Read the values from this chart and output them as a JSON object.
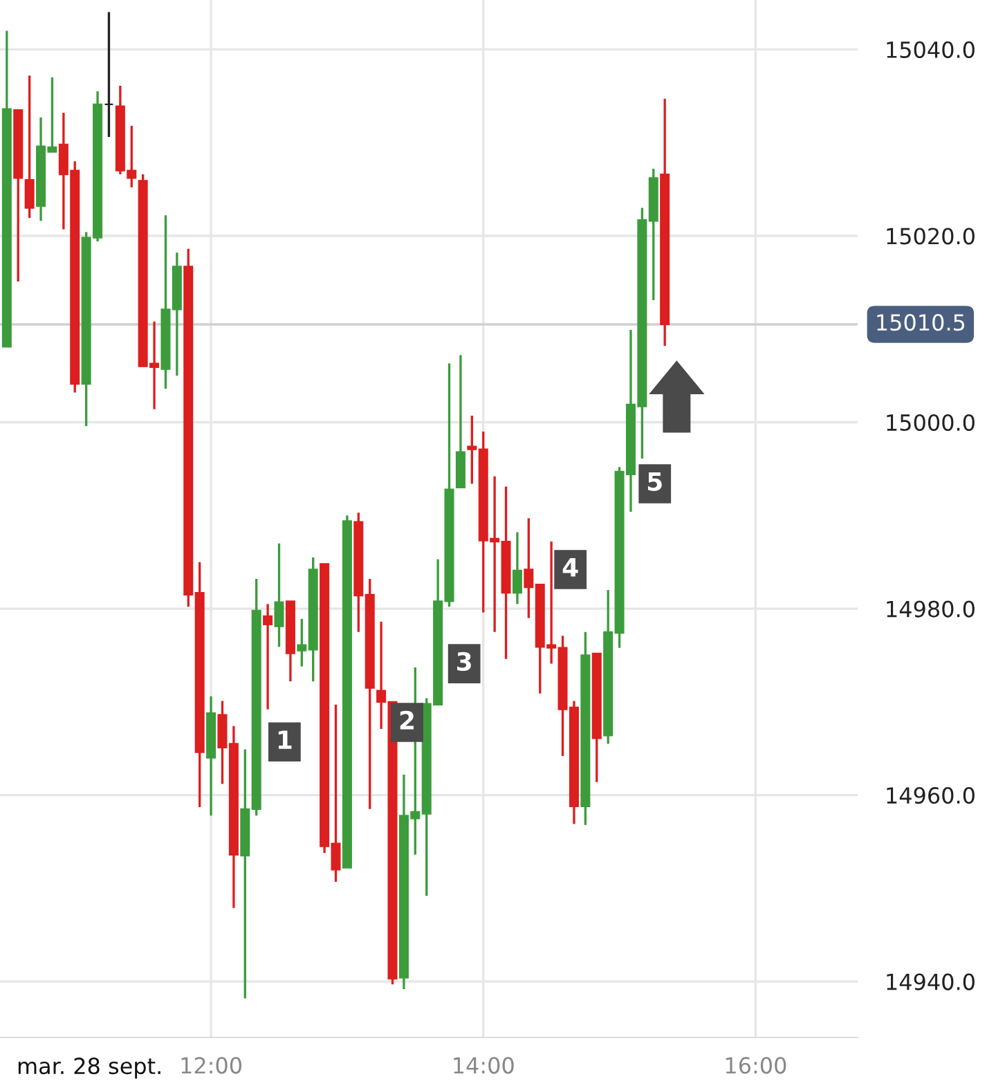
{
  "chart_data": {
    "type": "candlestick",
    "x": [
      10.5,
      10.5833,
      10.6667,
      10.75,
      10.8333,
      10.9167,
      11,
      11.0833,
      11.1667,
      11.25,
      11.3333,
      11.4167,
      11.5,
      11.5833,
      11.6667,
      11.75,
      11.8333,
      11.9167,
      12,
      12.0833,
      12.1667,
      12.25,
      12.3333,
      12.4167,
      12.5,
      12.5833,
      12.6667,
      12.75,
      12.8333,
      12.9167,
      13,
      13.0833,
      13.1667,
      13.25,
      13.3333,
      13.4167,
      13.5,
      13.5833,
      13.6667,
      13.75,
      13.8333,
      13.9167,
      14,
      14.0833,
      14.1667,
      14.25,
      14.3333,
      14.4167,
      14.5,
      14.5833,
      14.6667,
      14.75,
      14.8333,
      14.9167,
      15,
      15.0833,
      15.1667,
      15.25,
      15.3333
    ],
    "ohlc": [
      [
        15008.1,
        15042.0,
        15008.1,
        15033.6
      ],
      [
        15033.5,
        15033.5,
        15015.1,
        15026.2
      ],
      [
        15026.0,
        15037.2,
        15021.9,
        15023.0
      ],
      [
        15023.2,
        15032.7,
        15021.6,
        15029.6
      ],
      [
        15029.0,
        15037.0,
        15029.0,
        15029.5
      ],
      [
        15029.8,
        15033.2,
        15020.7,
        15026.6
      ],
      [
        15027.0,
        15028.0,
        15003.2,
        15004.1
      ],
      [
        15004.1,
        15020.4,
        14999.6,
        15019.8
      ],
      [
        15019.8,
        15035.5,
        15019.4,
        15034.1
      ],
      [
        15034.1,
        15044.0,
        15030.6,
        15034.1
      ],
      [
        15033.9,
        15036.1,
        15026.6,
        15027.0
      ],
      [
        15027.0,
        15031.8,
        15025.2,
        15026.2
      ],
      [
        15025.9,
        15026.6,
        15006.0,
        15006.0
      ],
      [
        15006.3,
        15010.8,
        15001.4,
        15005.9
      ],
      [
        15005.7,
        15022.2,
        15003.6,
        15012.1
      ],
      [
        15012.1,
        15018.2,
        15005.0,
        15016.7
      ],
      [
        15016.7,
        15018.6,
        14980.2,
        14981.5
      ],
      [
        14981.7,
        14985.0,
        14958.7,
        14964.6
      ],
      [
        14964.0,
        14970.6,
        14957.8,
        14968.8
      ],
      [
        14968.6,
        14970.1,
        14961.2,
        14965.1
      ],
      [
        14965.5,
        14967.4,
        14947.9,
        14953.6
      ],
      [
        14953.5,
        14964.9,
        14938.2,
        14958.5
      ],
      [
        14958.5,
        14983.2,
        14957.8,
        14979.8
      ],
      [
        14979.2,
        14980.5,
        14969.2,
        14978.3
      ],
      [
        14978.1,
        14987.0,
        14975.9,
        14980.7
      ],
      [
        14980.8,
        14980.8,
        14972.2,
        14975.2
      ],
      [
        14975.5,
        14978.9,
        14973.8,
        14976.1
      ],
      [
        14975.6,
        14985.5,
        14972.2,
        14984.2
      ],
      [
        14984.8,
        14984.8,
        14953.8,
        14954.5
      ],
      [
        14954.8,
        14969.7,
        14950.7,
        14952.0
      ],
      [
        14952.2,
        14990.0,
        14952.2,
        14989.4
      ],
      [
        14989.3,
        14990.3,
        14977.5,
        14981.4
      ],
      [
        14981.5,
        14983.2,
        14958.5,
        14971.5
      ],
      [
        14971.2,
        14978.6,
        14967.1,
        14970.0
      ],
      [
        14970.0,
        14970.0,
        14939.7,
        14940.3
      ],
      [
        14940.4,
        14962.2,
        14939.2,
        14957.8
      ],
      [
        14957.5,
        14973.7,
        14953.6,
        14958.2
      ],
      [
        14958.0,
        14970.4,
        14949.2,
        14969.8
      ],
      [
        14969.7,
        14985.3,
        14969.7,
        14980.8
      ],
      [
        14980.8,
        15006.3,
        14980.2,
        14992.8
      ],
      [
        14993.0,
        15007.2,
        14993.0,
        14996.8
      ],
      [
        14997.4,
        15000.7,
        14993.4,
        14997.1
      ],
      [
        14997.1,
        14999.0,
        14979.6,
        14987.3
      ],
      [
        14987.5,
        14994.2,
        14977.5,
        14987.2
      ],
      [
        14987.2,
        14993.1,
        14974.6,
        14981.7
      ],
      [
        14981.7,
        14988.2,
        14980.5,
        14984.1
      ],
      [
        14984.2,
        14989.7,
        14979.0,
        14982.3
      ],
      [
        14982.6,
        14982.6,
        14970.9,
        14975.9
      ],
      [
        14976.1,
        14987.2,
        14974.1,
        14975.8
      ],
      [
        14975.8,
        14977.1,
        14964.2,
        14969.2
      ],
      [
        14969.4,
        14970.1,
        14956.9,
        14958.8
      ],
      [
        14958.8,
        14977.5,
        14956.8,
        14975.0
      ],
      [
        14975.2,
        14975.2,
        14961.4,
        14966.1
      ],
      [
        14966.4,
        14982.0,
        14965.5,
        14977.5
      ],
      [
        14977.4,
        14995.2,
        14975.8,
        14994.7
      ],
      [
        14994.4,
        15009.9,
        14990.4,
        15001.9
      ],
      [
        15001.7,
        15023.0,
        14996.1,
        15021.7
      ],
      [
        15021.6,
        15027.2,
        15013.1,
        15026.2
      ],
      [
        15026.6,
        15034.7,
        15008.2,
        15010.5
      ]
    ],
    "colors": [
      "#3c9c3c",
      "#dc1f1f",
      "#dc1f1f",
      "#3c9c3c",
      "#3c9c3c",
      "#dc1f1f",
      "#dc1f1f",
      "#3c9c3c",
      "#3c9c3c",
      "#222222",
      "#dc1f1f",
      "#dc1f1f",
      "#dc1f1f",
      "#dc1f1f",
      "#3c9c3c",
      "#3c9c3c",
      "#dc1f1f",
      "#dc1f1f",
      "#3c9c3c",
      "#dc1f1f",
      "#dc1f1f",
      "#3c9c3c",
      "#3c9c3c",
      "#dc1f1f",
      "#3c9c3c",
      "#dc1f1f",
      "#3c9c3c",
      "#3c9c3c",
      "#dc1f1f",
      "#dc1f1f",
      "#3c9c3c",
      "#dc1f1f",
      "#dc1f1f",
      "#dc1f1f",
      "#dc1f1f",
      "#3c9c3c",
      "#3c9c3c",
      "#3c9c3c",
      "#3c9c3c",
      "#3c9c3c",
      "#3c9c3c",
      "#dc1f1f",
      "#dc1f1f",
      "#dc1f1f",
      "#dc1f1f",
      "#3c9c3c",
      "#dc1f1f",
      "#dc1f1f",
      "#dc1f1f",
      "#dc1f1f",
      "#dc1f1f",
      "#3c9c3c",
      "#dc1f1f",
      "#3c9c3c",
      "#3c9c3c",
      "#3c9c3c",
      "#3c9c3c",
      "#3c9c3c",
      "#dc1f1f"
    ],
    "xlim": [
      10.45,
      16.75
    ],
    "xticks": [
      {
        "value": 12,
        "label": "12:00"
      },
      {
        "value": 14,
        "label": "14:00"
      },
      {
        "value": 16,
        "label": "16:00"
      }
    ],
    "ylim": [
      14934,
      15045.3
    ],
    "yticks": [
      {
        "value": 14940,
        "label": "14940.0"
      },
      {
        "value": 14960,
        "label": "14960.0"
      },
      {
        "value": 14980,
        "label": "14980.0"
      },
      {
        "value": 15000,
        "label": "15000.0"
      },
      {
        "value": 15020,
        "label": "15020.0"
      },
      {
        "value": 15040,
        "label": "15040.0"
      }
    ],
    "grid": true,
    "ref_lines": [
      {
        "axis": "y",
        "value": 15010.5,
        "label": "15010.5"
      }
    ],
    "annotations": [
      "mar. 28 sept.",
      {
        "text": "1",
        "x": 12.54,
        "y": 14965.7
      },
      {
        "text": "2",
        "x": 13.44,
        "y": 14967.8
      },
      {
        "text": "3",
        "x": 13.86,
        "y": 14974.1
      },
      {
        "text": "4",
        "x": 14.64,
        "y": 14984.2
      },
      {
        "text": "5",
        "x": 15.26,
        "y": 14993.4
      }
    ]
  }
}
